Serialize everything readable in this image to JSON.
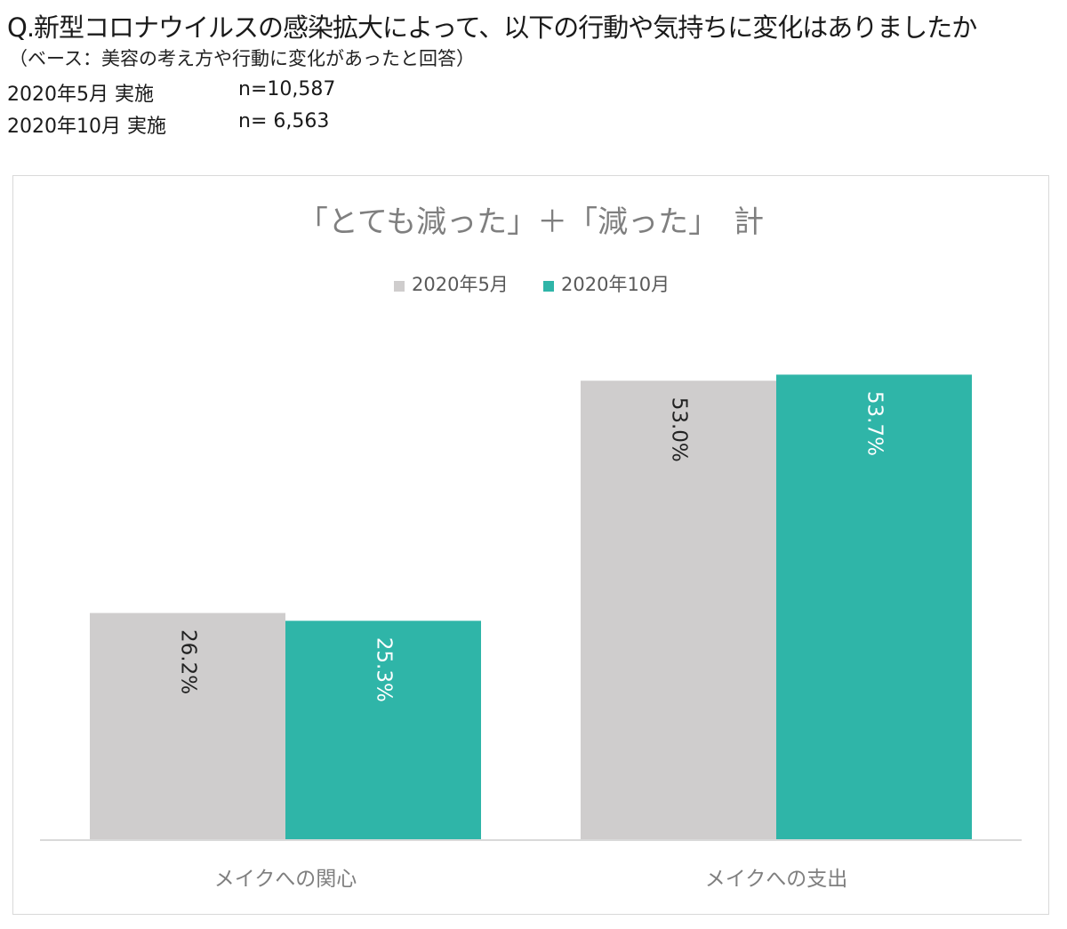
{
  "question": {
    "title": "Q.新型コロナウイルスの感染拡大によって、以下の行動や気持ちに変化はありましたか",
    "base": "（ベース：美容の考え方や行動に変化があったと回答）"
  },
  "samples": [
    {
      "label": "2020年5月 実施",
      "n": "n=10,587"
    },
    {
      "label": "2020年10月 実施",
      "n": "n= 6,563"
    }
  ],
  "colors": {
    "series_may": "#cfcdcd",
    "series_oct": "#2fb5a8",
    "label_dark": "#222222",
    "label_light": "#ffffff",
    "axis": "#d9d9d9",
    "title": "#7f7f7f"
  },
  "chart_data": {
    "type": "bar",
    "title": "「とても減った」＋「減った」　計",
    "categories": [
      "メイクへの関心",
      "メイクへの支出"
    ],
    "series": [
      {
        "name": "2020年5月",
        "values": [
          26.2,
          53.0
        ],
        "labels": [
          "26.2%",
          "53.0%"
        ]
      },
      {
        "name": "2020年10月",
        "values": [
          25.3,
          53.7
        ],
        "labels": [
          "25.3%",
          "53.7%"
        ]
      }
    ],
    "unit": "%",
    "ylim": [
      0,
      56
    ],
    "grid": false,
    "legend": "top",
    "data_labels": "inside, rotated vertical"
  }
}
